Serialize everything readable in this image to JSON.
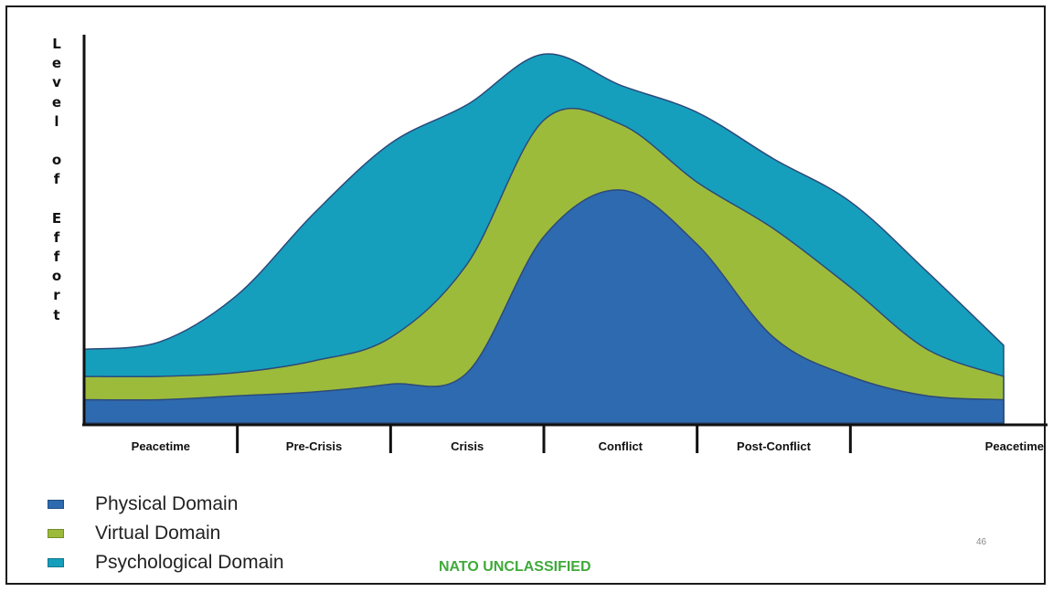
{
  "chart_data": {
    "type": "area",
    "stacked": true,
    "title": "",
    "ylabel": "Level of Effort",
    "xlabel": "",
    "categories": [
      "Peacetime",
      "Pre-Crisis",
      "Crisis",
      "Conflict",
      "Post-Conflict",
      "Peacetime"
    ],
    "ylim": [
      0,
      100
    ],
    "grid": false,
    "legend_placement": "bottom-left",
    "x": [
      0,
      0.5,
      1,
      1.5,
      2,
      2.5,
      3,
      3.5,
      4,
      4.5,
      5,
      5.5,
      6
    ],
    "series": [
      {
        "name": "Physical Domain",
        "color": "#2e6aaf",
        "values": [
          6,
          6,
          7,
          8,
          10,
          13,
          48,
          60,
          46,
          22,
          12,
          7,
          6
        ]
      },
      {
        "name": "Virtual Domain",
        "color": "#9dbb3a",
        "values": [
          6,
          6,
          6,
          8,
          12,
          28,
          30,
          17,
          16,
          28,
          23,
          12,
          6
        ]
      },
      {
        "name": "Psychological Domain",
        "color": "#159fbd",
        "values": [
          7,
          9,
          20,
          38,
          50,
          41,
          17,
          10,
          18,
          18,
          22,
          20,
          8
        ]
      }
    ]
  },
  "footer": {
    "classification": "NATO UNCLASSIFIED",
    "page_number": "46"
  }
}
